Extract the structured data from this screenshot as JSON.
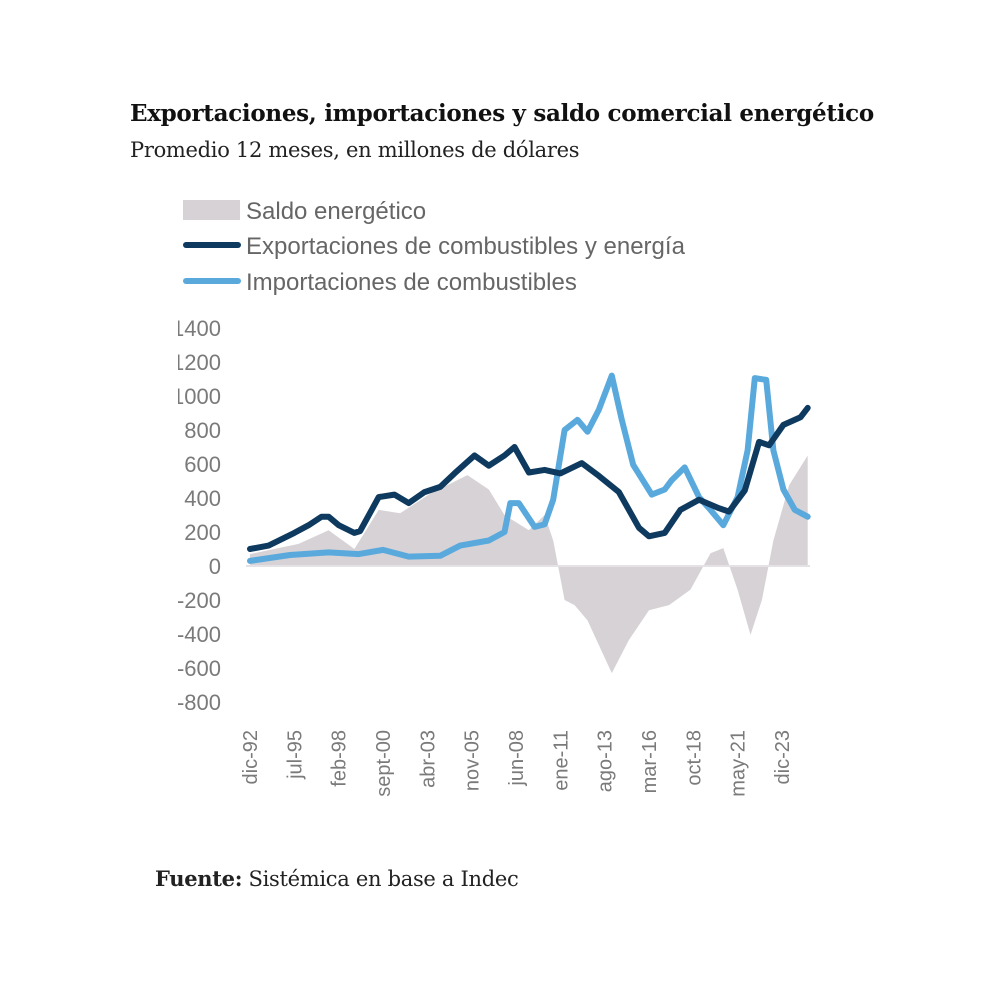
{
  "header": {
    "title": "Exportaciones, importaciones y saldo comercial energético",
    "subtitle": "Promedio 12 meses, en millones de dólares"
  },
  "footer": {
    "source_label": "Fuente:",
    "source_text": " Sistémica en base a Indec"
  },
  "chart_data": {
    "type": "line",
    "title": "Exportaciones, importaciones y saldo comercial energético",
    "subtitle": "Promedio 12 meses, en millones de dólares",
    "ylim": [
      -800,
      1400
    ],
    "yticks": [
      "1400",
      "1200",
      "1000",
      "800",
      "600",
      "400",
      "200",
      "0",
      "-200",
      "-400",
      "-600",
      "-800"
    ],
    "yticks_values": [
      1400,
      1200,
      1000,
      800,
      600,
      400,
      200,
      0,
      -200,
      -400,
      -600,
      -800
    ],
    "xticks": [
      "dic-92",
      "jul-95",
      "feb-98",
      "sept-00",
      "abr-03",
      "nov-05",
      "jun-08",
      "ene-11",
      "ago-13",
      "mar-16",
      "oct-18",
      "may-21",
      "dic-23"
    ],
    "xticks_dates": [
      "1992-12",
      "1995-07",
      "1998-02",
      "2000-09",
      "2003-04",
      "2005-11",
      "2008-06",
      "2011-01",
      "2013-08",
      "2016-03",
      "2018-10",
      "2021-05",
      "2023-12"
    ],
    "legend_position": "top-left",
    "grid": false,
    "series": [
      {
        "name": "Saldo energético",
        "kind": "area",
        "color": "#d6d2d6",
        "x": [
          "1992-12",
          "1995-10",
          "1997-07",
          "1999-01",
          "2000-06",
          "2001-09",
          "2003-05",
          "2005-08",
          "2006-11",
          "2007-10",
          "2009-03",
          "2010-02",
          "2010-08",
          "2011-04",
          "2011-11",
          "2012-08",
          "2014-01",
          "2015-01",
          "2016-03",
          "2017-05",
          "2018-08",
          "2019-10",
          "2020-07",
          "2021-05",
          "2022-02",
          "2022-10",
          "2023-06",
          "2024-05",
          "2025-06"
        ],
        "values": [
          70,
          130,
          210,
          100,
          330,
          310,
          420,
          535,
          450,
          300,
          210,
          300,
          150,
          -200,
          -230,
          -320,
          -630,
          -435,
          -260,
          -230,
          -140,
          75,
          105,
          -140,
          -405,
          -200,
          150,
          475,
          650
        ]
      },
      {
        "name": "Exportaciones de combustibles y energía",
        "kind": "line",
        "color": "#0f3a5f",
        "x": [
          "1992-12",
          "1994-01",
          "1995-07",
          "1996-05",
          "1997-02",
          "1997-07",
          "1998-02",
          "1999-01",
          "1999-05",
          "2000-06",
          "2001-05",
          "2002-03",
          "2003-02",
          "2004-01",
          "2004-11",
          "2006-01",
          "2006-11",
          "2007-10",
          "2008-05",
          "2009-03",
          "2010-02",
          "2011-01",
          "2012-04",
          "2013-04",
          "2014-06",
          "2015-08",
          "2016-03",
          "2017-02",
          "2018-01",
          "2019-02",
          "2020-04",
          "2020-11",
          "2021-10",
          "2022-08",
          "2023-03",
          "2024-01",
          "2025-01",
          "2025-06"
        ],
        "values": [
          100,
          120,
          195,
          240,
          290,
          290,
          240,
          195,
          205,
          405,
          420,
          370,
          435,
          465,
          545,
          650,
          590,
          650,
          700,
          550,
          565,
          545,
          605,
          530,
          435,
          225,
          175,
          195,
          330,
          390,
          340,
          320,
          445,
          730,
          710,
          830,
          875,
          930
        ]
      },
      {
        "name": "Importaciones de combustibles",
        "kind": "line",
        "color": "#5aa9dd",
        "x": [
          "1992-12",
          "1995-04",
          "1997-07",
          "1999-04",
          "2000-09",
          "2002-03",
          "2004-01",
          "2005-03",
          "2006-11",
          "2007-10",
          "2008-02",
          "2008-08",
          "2009-07",
          "2010-02",
          "2010-08",
          "2011-04",
          "2012-01",
          "2012-08",
          "2013-04",
          "2014-01",
          "2014-08",
          "2015-04",
          "2016-05",
          "2017-02",
          "2017-07",
          "2018-04",
          "2019-02",
          "2019-10",
          "2020-07",
          "2021-05",
          "2021-12",
          "2022-05",
          "2023-01",
          "2023-06",
          "2024-01",
          "2024-09",
          "2025-06"
        ],
        "values": [
          30,
          65,
          80,
          70,
          95,
          55,
          60,
          120,
          150,
          200,
          370,
          370,
          230,
          245,
          390,
          800,
          860,
          790,
          920,
          1120,
          860,
          595,
          420,
          450,
          505,
          580,
          405,
          330,
          240,
          405,
          680,
          1105,
          1095,
          680,
          450,
          330,
          290
        ]
      }
    ]
  }
}
